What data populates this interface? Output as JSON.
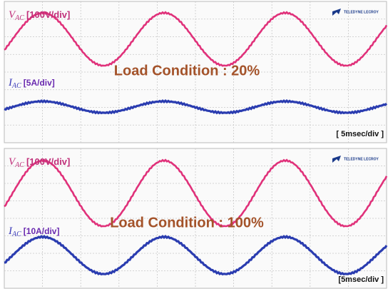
{
  "panels": [
    {
      "voltage_label": {
        "symbol": "V",
        "subscript": "AC",
        "scale": "[100V/div]"
      },
      "current_label": {
        "symbol": "I",
        "subscript": "AC",
        "scale": "[5A/div]"
      },
      "condition": "Load Condition : 20%",
      "timebase": "[ 5msec/div ]",
      "logo": "TELEDYNE LECROY"
    },
    {
      "voltage_label": {
        "symbol": "V",
        "subscript": "AC",
        "scale": "[100V/div]"
      },
      "current_label": {
        "symbol": "I",
        "subscript": "AC",
        "scale": "[10A/div]"
      },
      "condition": "Load Condition : 100%",
      "timebase": "[5msec/div ]",
      "logo": "TELEDYNE LECROY"
    }
  ]
}
